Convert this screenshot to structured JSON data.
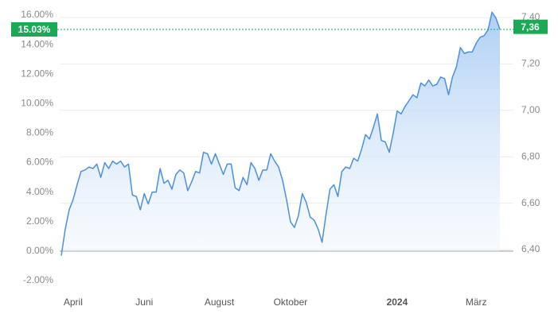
{
  "chart_data": {
    "type": "area",
    "series": [
      {
        "color": "#4a90e2",
        "values": [
          -0.3,
          1.5,
          2.8,
          3.5,
          4.5,
          5.4,
          5.5,
          5.7,
          5.6,
          5.9,
          5.0,
          6.0,
          5.6,
          6.1,
          5.9,
          6.1,
          5.7,
          5.9,
          3.8,
          3.7,
          2.8,
          3.9,
          3.2,
          4.0,
          4.0,
          5.6,
          4.6,
          4.8,
          4.2,
          5.2,
          5.5,
          5.3,
          4.1,
          4.7,
          5.4,
          5.3,
          6.7,
          6.6,
          5.9,
          6.6,
          5.9,
          5.2,
          5.9,
          5.9,
          4.3,
          4.1,
          5.0,
          4.5,
          6.0,
          5.6,
          4.8,
          5.5,
          5.5,
          6.6,
          6.1,
          5.7,
          4.8,
          3.5,
          2.0,
          1.6,
          2.4,
          3.9,
          3.3,
          2.3,
          2.1,
          1.5,
          0.6,
          2.5,
          4.2,
          4.5,
          3.7,
          5.4,
          5.7,
          5.6,
          6.3,
          6.1,
          6.9,
          7.9,
          7.6,
          8.4,
          9.3,
          7.5,
          7.4,
          6.7,
          8.0,
          9.5,
          9.3,
          9.8,
          10.2,
          10.6,
          10.4,
          11.4,
          11.2,
          11.6,
          11.2,
          11.3,
          11.8,
          11.7,
          10.6,
          11.8,
          12.5,
          13.8,
          13.4,
          13.5,
          13.5,
          14.1,
          14.5,
          14.6,
          15.0,
          16.2,
          15.8,
          15.03
        ]
      }
    ],
    "categories": [
      null,
      null,
      null,
      "April",
      null,
      null,
      null,
      null,
      null,
      null,
      null,
      null,
      null,
      null,
      null,
      null,
      null,
      null,
      null,
      null,
      null,
      "Juni",
      null,
      null,
      null,
      null,
      null,
      null,
      null,
      null,
      null,
      null,
      null,
      null,
      null,
      null,
      null,
      null,
      null,
      null,
      "August",
      null,
      null,
      null,
      null,
      null,
      null,
      null,
      null,
      null,
      null,
      null,
      null,
      null,
      null,
      null,
      null,
      null,
      "Oktober",
      null,
      null,
      null,
      null,
      null,
      null,
      null,
      null,
      null,
      null,
      null,
      null,
      null,
      null,
      null,
      null,
      null,
      null,
      null,
      null,
      null,
      null,
      null,
      null,
      null,
      null,
      "2024",
      null,
      null,
      null,
      null,
      null,
      null,
      null,
      null,
      null,
      null,
      null,
      null,
      null,
      null,
      null,
      null,
      null,
      null,
      null,
      "März",
      null,
      null,
      null,
      null,
      null,
      null
    ],
    "ylim": [
      -2,
      16
    ],
    "yticks": [
      {
        "value": 16,
        "label": "16.00%"
      },
      {
        "value": 14,
        "label": "14.00%"
      },
      {
        "value": 12,
        "label": "12.00%"
      },
      {
        "value": 10,
        "label": "10.00%"
      },
      {
        "value": 8,
        "label": "8.00%"
      },
      {
        "value": 6,
        "label": "6.00%"
      },
      {
        "value": 4,
        "label": "4.00%"
      },
      {
        "value": 2,
        "label": "2.00%"
      },
      {
        "value": 0,
        "label": "0.00%"
      },
      {
        "value": -2,
        "label": "-2.00%"
      }
    ],
    "y2lim": [
      6.4,
      7.4
    ],
    "y2ticks": [
      {
        "value": 7.4,
        "label": "7,40"
      },
      {
        "value": 7.2,
        "label": "7,20"
      },
      {
        "value": 7.0,
        "label": "7,00"
      },
      {
        "value": 6.8,
        "label": "6,80"
      },
      {
        "value": 6.6,
        "label": "6,60"
      },
      {
        "value": 6.4,
        "label": "6,40"
      }
    ],
    "last_marker": {
      "value": 15.03,
      "label": "15.03%",
      "color": "#1aaa55"
    },
    "last_marker_y2": {
      "value": 7.36,
      "label": "7,36"
    },
    "grid": true
  }
}
